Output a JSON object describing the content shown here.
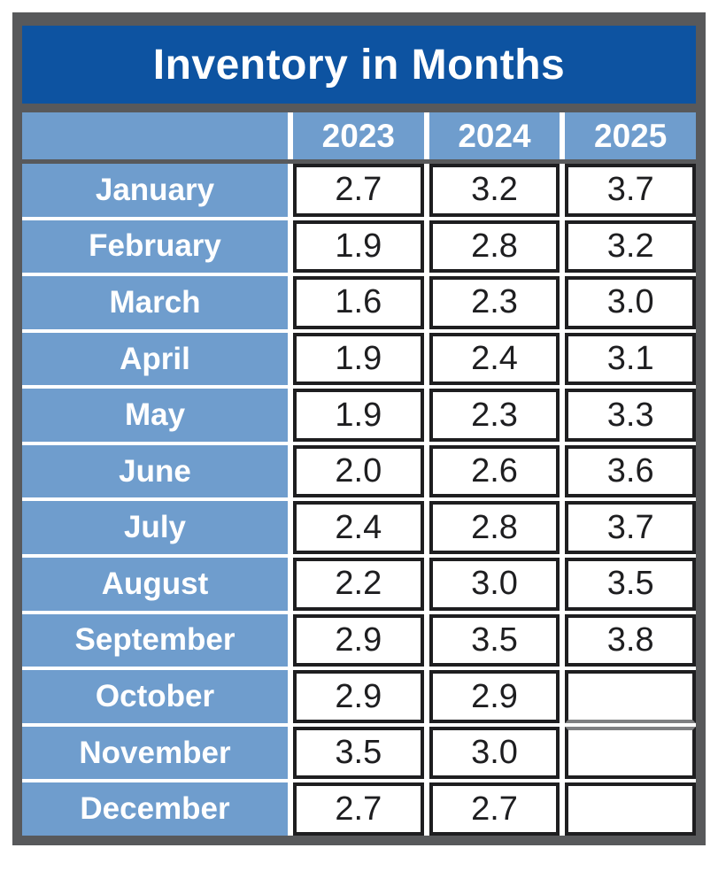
{
  "title": "Inventory in Months",
  "colors": {
    "title_bg": "#0D53A1",
    "accent_blue": "#6F9DCD",
    "frame_gray": "#58595B",
    "cell_border": "#1E1E20",
    "text_on_blue": "#FFFFFF",
    "text_value": "#1E1E20"
  },
  "chart_data": {
    "type": "table",
    "title": "Inventory in Months",
    "columns": [
      "",
      "2023",
      "2024",
      "2025"
    ],
    "rows": [
      {
        "month": "January",
        "values": [
          "2.7",
          "3.2",
          "3.7"
        ]
      },
      {
        "month": "February",
        "values": [
          "1.9",
          "2.8",
          "3.2"
        ]
      },
      {
        "month": "March",
        "values": [
          "1.6",
          "2.3",
          "3.0"
        ]
      },
      {
        "month": "April",
        "values": [
          "1.9",
          "2.4",
          "3.1"
        ]
      },
      {
        "month": "May",
        "values": [
          "1.9",
          "2.3",
          "3.3"
        ]
      },
      {
        "month": "June",
        "values": [
          "2.0",
          "2.6",
          "3.6"
        ]
      },
      {
        "month": "July",
        "values": [
          "2.4",
          "2.8",
          "3.7"
        ]
      },
      {
        "month": "August",
        "values": [
          "2.2",
          "3.0",
          "3.5"
        ]
      },
      {
        "month": "September",
        "values": [
          "2.9",
          "3.5",
          "3.8"
        ]
      },
      {
        "month": "October",
        "values": [
          "2.9",
          "2.9",
          ""
        ]
      },
      {
        "month": "November",
        "values": [
          "3.5",
          "3.0",
          ""
        ]
      },
      {
        "month": "December",
        "values": [
          "2.7",
          "2.7",
          ""
        ]
      }
    ]
  }
}
